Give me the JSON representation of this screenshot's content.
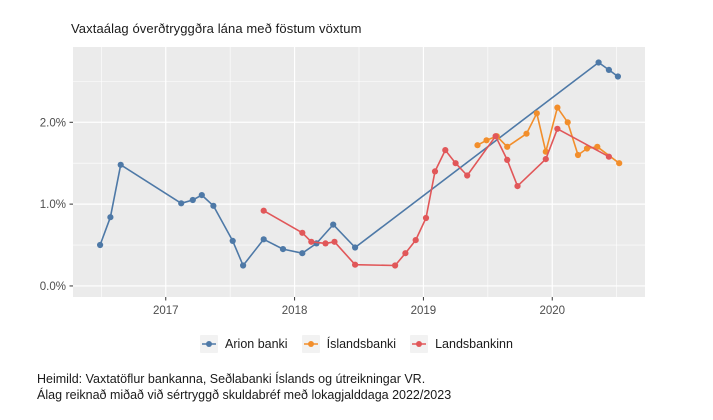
{
  "title": "Vaxtaálag óverðtryggðra lána með föstum vöxtum",
  "footer": {
    "line1": "Heimild: Vaxtatöflur bankanna, Seðlabanki Íslands og útreikningar VR.",
    "line2": "Álag reiknað miðað við sértryggð skuldabréf með lokagjalddaga 2022/2023"
  },
  "legend": {
    "items": [
      {
        "label": "Arion banki",
        "color": "#4E79A7"
      },
      {
        "label": "Íslandsbanki",
        "color": "#F28E2B"
      },
      {
        "label": "Landsbankinn",
        "color": "#E15759"
      }
    ]
  },
  "colors": {
    "background": "#FFFFFF",
    "panel": "#EBEBEB",
    "grid_major": "#FFFFFF",
    "grid_minor": "#FFFFFF",
    "axis_text": "#4D4D4D",
    "tick_mark": "#333333",
    "title_text": "#1A1A1A",
    "legend_key_bg": "#F2F2F2"
  },
  "chart_data": {
    "type": "line",
    "title": "Vaxtaálag óverðtryggðra lána með föstum vöxtum",
    "xlabel": "",
    "ylabel": "",
    "grid": true,
    "legend_position": "bottom",
    "x_axis": {
      "range": [
        2016.28,
        2020.72
      ],
      "ticks": [
        2017,
        2018,
        2019,
        2020
      ],
      "tick_labels": [
        "2017",
        "2018",
        "2019",
        "2020"
      ],
      "minor_ticks": [
        2016.5,
        2017.5,
        2018.5,
        2019.5,
        2020.5
      ]
    },
    "y_axis": {
      "unit": "percent",
      "range": [
        -0.135,
        2.92
      ],
      "ticks": [
        0.0,
        1.0,
        2.0
      ],
      "tick_labels": [
        "0.0%",
        "1.0%",
        "2.0%"
      ],
      "minor_ticks": [
        0.5,
        1.5,
        2.5
      ]
    },
    "series": [
      {
        "name": "Arion banki",
        "color": "#4E79A7",
        "points": [
          [
            2016.49,
            0.5
          ],
          [
            2016.57,
            0.84
          ],
          [
            2016.65,
            1.48
          ],
          [
            2017.12,
            1.01
          ],
          [
            2017.21,
            1.05
          ],
          [
            2017.28,
            1.11
          ],
          [
            2017.37,
            0.98
          ],
          [
            2017.52,
            0.55
          ],
          [
            2017.6,
            0.25
          ],
          [
            2017.76,
            0.57
          ],
          [
            2017.91,
            0.45
          ],
          [
            2018.06,
            0.4
          ],
          [
            2018.17,
            0.52
          ],
          [
            2018.3,
            0.75
          ],
          [
            2018.47,
            0.47
          ],
          [
            2020.36,
            2.73
          ],
          [
            2020.44,
            2.64
          ],
          [
            2020.51,
            2.56
          ]
        ]
      },
      {
        "name": "Íslandsbanki",
        "color": "#F28E2B",
        "points": [
          [
            2019.42,
            1.72
          ],
          [
            2019.49,
            1.78
          ],
          [
            2019.57,
            1.83
          ],
          [
            2019.65,
            1.7
          ],
          [
            2019.8,
            1.86
          ],
          [
            2019.88,
            2.11
          ],
          [
            2019.95,
            1.64
          ],
          [
            2020.04,
            2.18
          ],
          [
            2020.12,
            2.0
          ],
          [
            2020.2,
            1.6
          ],
          [
            2020.27,
            1.68
          ],
          [
            2020.35,
            1.7
          ],
          [
            2020.52,
            1.5
          ]
        ]
      },
      {
        "name": "Landsbankinn",
        "color": "#E15759",
        "points": [
          [
            2017.76,
            0.92
          ],
          [
            2018.06,
            0.65
          ],
          [
            2018.13,
            0.54
          ],
          [
            2018.24,
            0.52
          ],
          [
            2018.31,
            0.54
          ],
          [
            2018.47,
            0.26
          ],
          [
            2018.78,
            0.25
          ],
          [
            2018.86,
            0.4
          ],
          [
            2018.94,
            0.56
          ],
          [
            2019.02,
            0.83
          ],
          [
            2019.09,
            1.4
          ],
          [
            2019.17,
            1.66
          ],
          [
            2019.25,
            1.5
          ],
          [
            2019.34,
            1.35
          ],
          [
            2019.56,
            1.83
          ],
          [
            2019.65,
            1.54
          ],
          [
            2019.73,
            1.22
          ],
          [
            2019.95,
            1.55
          ],
          [
            2020.04,
            1.92
          ],
          [
            2020.44,
            1.58
          ]
        ]
      }
    ]
  }
}
